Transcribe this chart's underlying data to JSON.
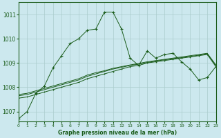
{
  "title": "Graphe pression niveau de la mer (hPa)",
  "background_color": "#cce8ee",
  "grid_color": "#aacccc",
  "line_color": "#1a5c1a",
  "xlim": [
    0,
    23
  ],
  "ylim": [
    1006.6,
    1011.5
  ],
  "yticks": [
    1007,
    1008,
    1009,
    1010,
    1011
  ],
  "xticks": [
    0,
    1,
    2,
    3,
    4,
    5,
    6,
    7,
    8,
    9,
    10,
    11,
    12,
    13,
    14,
    15,
    16,
    17,
    18,
    19,
    20,
    21,
    22,
    23
  ],
  "series1_x": [
    0,
    1,
    2,
    3,
    4,
    5,
    6,
    7,
    8,
    9,
    10,
    11,
    12,
    13,
    14,
    15,
    16,
    17,
    18,
    19,
    20,
    21,
    22,
    23
  ],
  "series1_y": [
    1006.7,
    1007.0,
    1007.75,
    1008.05,
    1008.8,
    1009.3,
    1009.8,
    1010.0,
    1010.35,
    1010.4,
    1011.1,
    1011.1,
    1010.4,
    1009.2,
    1008.9,
    1009.5,
    1009.2,
    1009.35,
    1009.4,
    1009.05,
    1008.75,
    1008.3,
    1008.4,
    1008.85
  ],
  "series2_x": [
    0,
    1,
    2,
    3,
    4,
    5,
    6,
    7,
    8,
    9,
    10,
    11,
    12,
    13,
    14,
    15,
    16,
    17,
    18,
    19,
    20,
    21,
    22,
    23
  ],
  "series2_y": [
    1007.55,
    1007.6,
    1007.7,
    1007.8,
    1007.9,
    1008.0,
    1008.1,
    1008.2,
    1008.35,
    1008.45,
    1008.55,
    1008.65,
    1008.75,
    1008.85,
    1008.9,
    1009.0,
    1009.05,
    1009.1,
    1009.15,
    1009.2,
    1009.25,
    1009.3,
    1009.35,
    1008.85
  ],
  "series3_x": [
    0,
    1,
    2,
    3,
    4,
    5,
    6,
    7,
    8,
    9,
    10,
    11,
    12,
    13,
    14,
    15,
    16,
    17,
    18,
    19,
    20,
    21,
    22,
    23
  ],
  "series3_y": [
    1007.65,
    1007.7,
    1007.8,
    1007.9,
    1008.0,
    1008.1,
    1008.2,
    1008.3,
    1008.45,
    1008.55,
    1008.65,
    1008.75,
    1008.82,
    1008.9,
    1008.95,
    1009.02,
    1009.08,
    1009.13,
    1009.18,
    1009.22,
    1009.27,
    1009.32,
    1009.38,
    1008.9
  ],
  "series4_x": [
    0,
    1,
    2,
    3,
    4,
    5,
    6,
    7,
    8,
    9,
    10,
    11,
    12,
    13,
    14,
    15,
    16,
    17,
    18,
    19,
    20,
    21,
    22,
    23
  ],
  "series4_y": [
    1007.7,
    1007.75,
    1007.85,
    1007.95,
    1008.05,
    1008.15,
    1008.25,
    1008.35,
    1008.5,
    1008.6,
    1008.68,
    1008.78,
    1008.85,
    1008.92,
    1008.98,
    1009.05,
    1009.1,
    1009.15,
    1009.2,
    1009.25,
    1009.3,
    1009.35,
    1009.4,
    1008.92
  ]
}
